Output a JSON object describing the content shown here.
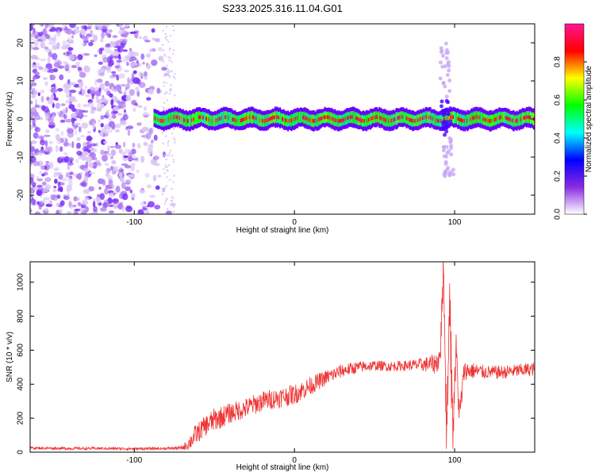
{
  "page": {
    "title": "S233.2025.316.11.04.G01"
  },
  "chart_data": [
    {
      "type": "heatmap",
      "title": "S233.2025.316.11.04.G01",
      "xlabel": "Height of straight line (km)",
      "ylabel": "Frequency (Hz)",
      "xlim": [
        -165,
        150
      ],
      "ylim": [
        -25,
        25
      ],
      "x_ticks": [
        -100,
        0,
        100
      ],
      "y_ticks": [
        -20,
        -10,
        0,
        10,
        20
      ],
      "x_tick_labels": [
        "-100",
        "0",
        "100"
      ],
      "y_tick_labels": [
        "-20",
        "-10",
        "0",
        "10",
        "20"
      ],
      "colorbar": {
        "label": "Normalized spectral amplitude",
        "range": [
          0,
          1
        ],
        "ticks": [
          0.0,
          0.2,
          0.4,
          0.6,
          0.8
        ],
        "tick_labels": [
          "0.0",
          "0.2",
          "0.4",
          "0.6",
          "0.8"
        ],
        "colormap": [
          "#ffffff",
          "#8a2be2",
          "#0000ff",
          "#00ffff",
          "#00ff00",
          "#ffff00",
          "#ff0000",
          "#ff1493"
        ]
      },
      "features": [
        {
          "name": "noise-region",
          "x_range": [
            -165,
            -75
          ],
          "y_range": [
            -25,
            25
          ],
          "level": 0.1
        },
        {
          "name": "signal-band",
          "x_range": [
            -88,
            150
          ],
          "frequency": 0,
          "level": 0.9
        },
        {
          "name": "disturbance",
          "x_center": 95,
          "y_range": [
            -15,
            20
          ],
          "level": 0.3
        }
      ]
    },
    {
      "type": "line",
      "xlabel": "Height of straight line (km)",
      "ylabel": "SNR (10 * v/v)",
      "xlim": [
        -165,
        150
      ],
      "ylim": [
        0,
        1120
      ],
      "x_ticks": [
        -100,
        0,
        100
      ],
      "y_ticks": [
        0,
        200,
        400,
        600,
        800,
        1000
      ],
      "x_tick_labels": [
        "-100",
        "0",
        "100"
      ],
      "y_tick_labels": [
        "0",
        "200",
        "400",
        "600",
        "800",
        "1000"
      ],
      "series": [
        {
          "name": "SNR",
          "color": "#ee3333",
          "x": [
            -165,
            -140,
            -120,
            -100,
            -80,
            -70,
            -66,
            -62,
            -55,
            -50,
            -40,
            -30,
            -20,
            -10,
            0,
            10,
            20,
            30,
            40,
            50,
            60,
            70,
            80,
            88,
            91,
            93,
            95,
            97,
            99,
            101,
            103,
            106,
            110,
            120,
            130,
            140,
            150
          ],
          "values": [
            25,
            22,
            22,
            20,
            22,
            25,
            50,
            100,
            160,
            190,
            230,
            260,
            300,
            320,
            340,
            390,
            440,
            480,
            500,
            510,
            505,
            510,
            515,
            520,
            560,
            1100,
            100,
            900,
            150,
            600,
            200,
            480,
            480,
            470,
            470,
            480,
            490
          ],
          "noise": [
            8,
            8,
            8,
            8,
            8,
            12,
            40,
            60,
            60,
            70,
            60,
            60,
            60,
            60,
            60,
            55,
            45,
            40,
            35,
            30,
            30,
            30,
            40,
            60,
            80,
            150,
            150,
            150,
            150,
            120,
            100,
            60,
            50,
            40,
            40,
            40,
            40
          ]
        }
      ]
    }
  ]
}
